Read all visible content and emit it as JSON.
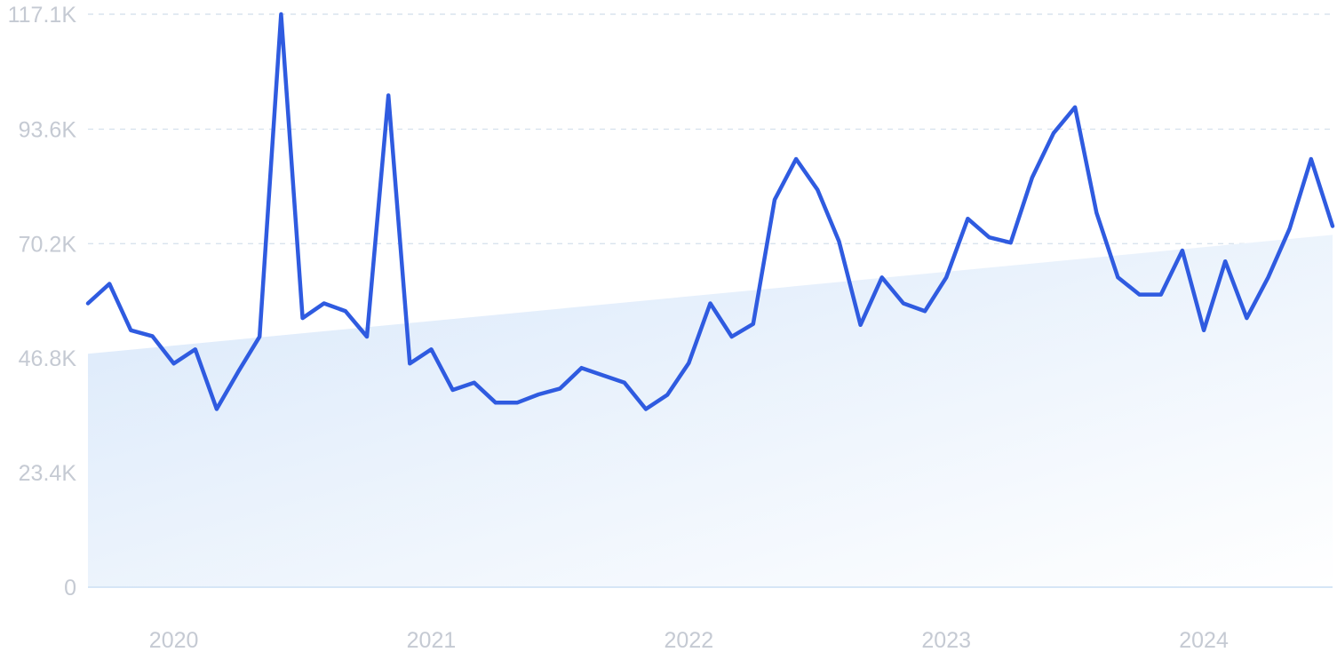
{
  "colors": {
    "line": "#2f5be0",
    "trend_fill_start": "#d9e8fa",
    "trend_fill_end": "#ffffff",
    "tick_text": "#c5cad3",
    "grid": "#d8e3ee"
  },
  "chart_data": {
    "type": "line",
    "title": "",
    "xlabel": "",
    "ylabel": "",
    "grid": true,
    "legend": "none",
    "x_range": [
      "2019-10",
      "2024-08"
    ],
    "ylim": [
      0,
      117100
    ],
    "y_ticks": [
      {
        "value": 0,
        "label": "0"
      },
      {
        "value": 23400,
        "label": "23.4K"
      },
      {
        "value": 46800,
        "label": "46.8K"
      },
      {
        "value": 70200,
        "label": "70.2K"
      },
      {
        "value": 93600,
        "label": "93.6K"
      },
      {
        "value": 117100,
        "label": "117.1K"
      }
    ],
    "x_ticks": [
      {
        "value": "2020-02",
        "label": "2020"
      },
      {
        "value": "2021-02",
        "label": "2021"
      },
      {
        "value": "2022-02",
        "label": "2022"
      },
      {
        "value": "2023-02",
        "label": "2023"
      },
      {
        "value": "2024-02",
        "label": "2024"
      }
    ],
    "trend": {
      "start": {
        "x": "2019-10",
        "y": 47700
      },
      "end": {
        "x": "2024-08",
        "y": 72000
      }
    },
    "series": [
      {
        "x": [
          "2019-10",
          "2019-11",
          "2019-12",
          "2020-01",
          "2020-02",
          "2020-03",
          "2020-04",
          "2020-05",
          "2020-06",
          "2020-07",
          "2020-08",
          "2020-09",
          "2020-10",
          "2020-11",
          "2020-12",
          "2021-01",
          "2021-02",
          "2021-03",
          "2021-04",
          "2021-05",
          "2021-06",
          "2021-07",
          "2021-08",
          "2021-09",
          "2021-10",
          "2021-11",
          "2021-12",
          "2022-01",
          "2022-02",
          "2022-03",
          "2022-04",
          "2022-05",
          "2022-06",
          "2022-07",
          "2022-08",
          "2022-09",
          "2022-10",
          "2022-11",
          "2022-12",
          "2023-01",
          "2023-02",
          "2023-03",
          "2023-04",
          "2023-05",
          "2023-06",
          "2023-07",
          "2023-08",
          "2023-09",
          "2023-10",
          "2023-11",
          "2023-12",
          "2024-01",
          "2024-02",
          "2024-03",
          "2024-04",
          "2024-05",
          "2024-06",
          "2024-07",
          "2024-08"
        ],
        "y": [
          58000,
          62000,
          52500,
          51300,
          45700,
          48600,
          36400,
          44000,
          51200,
          117100,
          55000,
          58000,
          56400,
          51200,
          100500,
          45700,
          48600,
          40300,
          41800,
          37700,
          37700,
          39400,
          40600,
          44800,
          43300,
          41800,
          36400,
          39300,
          45800,
          58000,
          51200,
          53800,
          79200,
          87500,
          81200,
          70700,
          53600,
          63300,
          58000,
          56400,
          63300,
          75300,
          71500,
          70400,
          83700,
          92800,
          98100,
          76500,
          63300,
          59800,
          59800,
          68800,
          52500,
          66600,
          55000,
          63300,
          73300,
          87500,
          73800
        ]
      }
    ]
  }
}
